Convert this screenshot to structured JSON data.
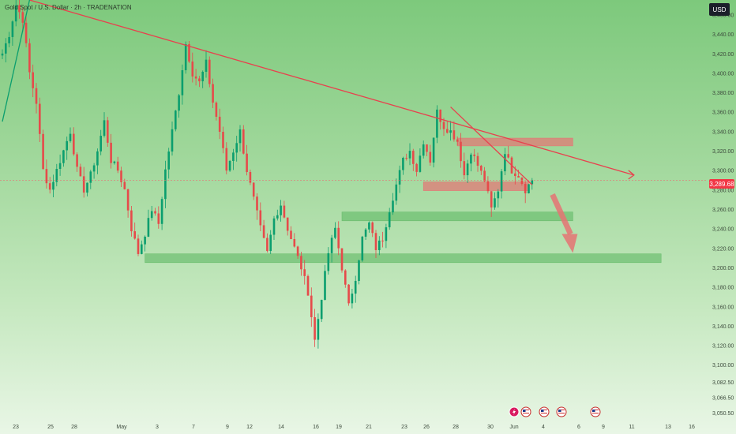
{
  "header": {
    "symbol_line": "Gold Spot / U.S. Dollar · 2h · TRADENATION"
  },
  "currency_label": "USD",
  "current_price": 3289.68,
  "current_price_label": "3,289.68",
  "colors": {
    "up": "#0b9e6e",
    "down": "#e64a4a",
    "trendline": "#e8414e",
    "zone_red": "#e57373",
    "zone_green": "#66bb6a",
    "arrow": "#e57373",
    "price_line": "#e57373",
    "text": "#3c4a3c"
  },
  "events": [
    "flash-icon",
    "us-flag-icon",
    "us-flag-icon",
    "us-flag-icon",
    "us-flag-icon"
  ],
  "chart_data": {
    "type": "candlestick",
    "x_tick_labels": [
      "23",
      "25",
      "28",
      "May",
      "3",
      "7",
      "9",
      "12",
      "14",
      "16",
      "19",
      "21",
      "23",
      "26",
      "28",
      "30",
      "Jun",
      "4",
      "6",
      "9",
      "11",
      "13",
      "16"
    ],
    "y_tick_labels": [
      "3,460.00",
      "3,440.00",
      "3,420.00",
      "3,400.00",
      "3,380.00",
      "3,360.00",
      "3,340.00",
      "3,320.00",
      "3,300.00",
      "3,280.00",
      "3,260.00",
      "3,240.00",
      "3,220.00",
      "3,200.00",
      "3,180.00",
      "3,160.00",
      "3,140.00",
      "3,120.00",
      "3,100.00",
      "3,082.50",
      "3,066.50",
      "3,050.50"
    ],
    "y_range": [
      3045,
      3475
    ],
    "close_path": [
      [
        0,
        3420
      ],
      [
        2,
        3440
      ],
      [
        4,
        3470
      ],
      [
        6,
        3455
      ],
      [
        8,
        3400
      ],
      [
        10,
        3370
      ],
      [
        12,
        3300
      ],
      [
        14,
        3280
      ],
      [
        16,
        3300
      ],
      [
        18,
        3320
      ],
      [
        20,
        3340
      ],
      [
        22,
        3300
      ],
      [
        24,
        3280
      ],
      [
        26,
        3295
      ],
      [
        28,
        3320
      ],
      [
        30,
        3350
      ],
      [
        32,
        3310
      ],
      [
        34,
        3300
      ],
      [
        36,
        3280
      ],
      [
        38,
        3240
      ],
      [
        40,
        3215
      ],
      [
        42,
        3235
      ],
      [
        44,
        3260
      ],
      [
        46,
        3245
      ],
      [
        48,
        3300
      ],
      [
        50,
        3340
      ],
      [
        52,
        3380
      ],
      [
        54,
        3430
      ],
      [
        56,
        3400
      ],
      [
        58,
        3390
      ],
      [
        60,
        3410
      ],
      [
        62,
        3370
      ],
      [
        64,
        3340
      ],
      [
        66,
        3300
      ],
      [
        68,
        3320
      ],
      [
        70,
        3340
      ],
      [
        72,
        3300
      ],
      [
        74,
        3270
      ],
      [
        76,
        3240
      ],
      [
        78,
        3215
      ],
      [
        80,
        3250
      ],
      [
        82,
        3265
      ],
      [
        84,
        3240
      ],
      [
        86,
        3220
      ],
      [
        88,
        3200
      ],
      [
        90,
        3175
      ],
      [
        92,
        3125
      ],
      [
        94,
        3170
      ],
      [
        96,
        3215
      ],
      [
        98,
        3240
      ],
      [
        100,
        3200
      ],
      [
        102,
        3160
      ],
      [
        104,
        3190
      ],
      [
        106,
        3230
      ],
      [
        108,
        3245
      ],
      [
        110,
        3220
      ],
      [
        112,
        3230
      ],
      [
        114,
        3260
      ],
      [
        116,
        3285
      ],
      [
        118,
        3310
      ],
      [
        120,
        3320
      ],
      [
        122,
        3300
      ],
      [
        124,
        3330
      ],
      [
        126,
        3310
      ],
      [
        128,
        3360
      ],
      [
        130,
        3345
      ],
      [
        132,
        3340
      ],
      [
        134,
        3330
      ],
      [
        136,
        3295
      ],
      [
        138,
        3320
      ],
      [
        140,
        3305
      ],
      [
        142,
        3290
      ],
      [
        144,
        3260
      ],
      [
        146,
        3280
      ],
      [
        148,
        3320
      ],
      [
        150,
        3300
      ],
      [
        152,
        3295
      ],
      [
        154,
        3280
      ],
      [
        156,
        3289.68
      ]
    ],
    "trendlines": [
      {
        "points": [
          [
            8,
            3475
          ],
          [
            186,
            3295
          ]
        ]
      },
      {
        "points": [
          [
            132,
            3365
          ],
          [
            156,
            3285
          ]
        ]
      },
      {
        "points": [
          [
            0,
            3350
          ],
          [
            8,
            3475
          ]
        ]
      }
    ],
    "zones": [
      {
        "color": "red",
        "from": [
          134,
          3333
        ],
        "to": [
          168,
          3325
        ]
      },
      {
        "color": "red",
        "from": [
          124,
          3288
        ],
        "to": [
          155,
          3279
        ]
      },
      {
        "color": "green",
        "from": [
          100,
          3257
        ],
        "to": [
          168,
          3248
        ]
      },
      {
        "color": "green",
        "from": [
          42,
          3214
        ],
        "to": [
          194,
          3205
        ]
      }
    ],
    "arrow": {
      "from": [
        162,
        3275
      ],
      "to": [
        168,
        3215
      ]
    }
  }
}
